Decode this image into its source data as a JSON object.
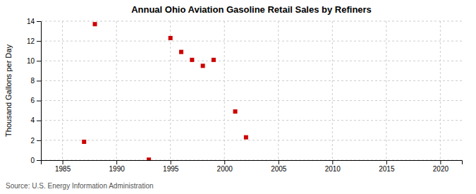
{
  "chart_data": {
    "type": "scatter",
    "title": "Annual Ohio Aviation Gasoline Retail Sales by Refiners",
    "ylabel": "Thousand Gallons per Day",
    "annotations": [
      "Source: U.S. Energy Information Administration"
    ],
    "x": [
      1987,
      1988,
      1993,
      1995,
      1996,
      1997,
      1998,
      1999,
      2001,
      2002
    ],
    "values": [
      1.85,
      13.7,
      0.05,
      12.3,
      10.9,
      10.1,
      9.5,
      10.1,
      4.9,
      2.3
    ],
    "color": "#cc0000",
    "marker": "square",
    "xlim": [
      1983,
      2022
    ],
    "ylim": [
      0,
      14
    ],
    "xticks": [
      1985,
      1990,
      1995,
      2000,
      2005,
      2010,
      2015,
      2020
    ],
    "yticks": [
      0,
      2,
      4,
      6,
      8,
      10,
      12,
      14
    ],
    "grid": true
  }
}
